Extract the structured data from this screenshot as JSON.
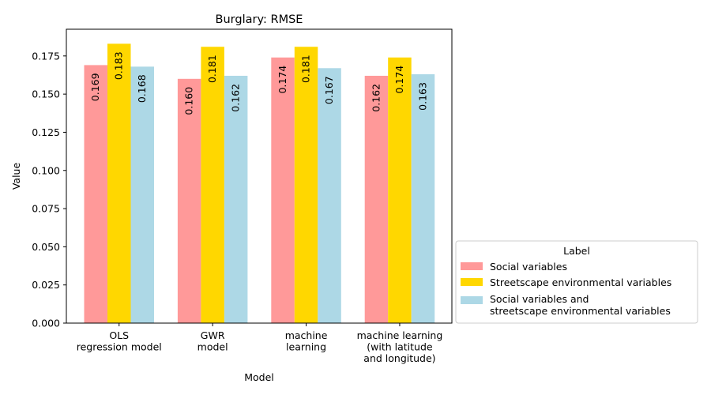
{
  "chart_data": {
    "type": "bar",
    "title": "Burglary: RMSE",
    "xlabel": "Model",
    "ylabel": "Value",
    "ylim": [
      0,
      0.1925
    ],
    "yticks": [
      "0.000",
      "0.025",
      "0.050",
      "0.075",
      "0.100",
      "0.125",
      "0.150",
      "0.175"
    ],
    "ytick_values": [
      0,
      0.025,
      0.05,
      0.075,
      0.1,
      0.125,
      0.15,
      0.175
    ],
    "categories": [
      [
        "OLS",
        "regression model"
      ],
      [
        "GWR",
        "model"
      ],
      [
        "machine",
        "learning"
      ],
      [
        "machine learning",
        "(with latitude",
        "and longitude)"
      ]
    ],
    "series": [
      {
        "name": "Social variables",
        "color": "#ff9999",
        "values": [
          0.169,
          0.16,
          0.174,
          0.162
        ],
        "labels": [
          "0.169",
          "0.160",
          "0.174",
          "0.162"
        ]
      },
      {
        "name": "Streetscape environmental variables",
        "color": "#ffd700",
        "values": [
          0.183,
          0.181,
          0.181,
          0.174
        ],
        "labels": [
          "0.183",
          "0.181",
          "0.181",
          "0.174"
        ]
      },
      {
        "name": [
          "Social variables and",
          "streetscape environmental variables"
        ],
        "color": "#add8e6",
        "values": [
          0.168,
          0.162,
          0.167,
          0.163
        ],
        "labels": [
          "0.168",
          "0.162",
          "0.167",
          "0.163"
        ]
      }
    ],
    "legend": {
      "title": "Label",
      "placement": "lower-right outside"
    },
    "grid": false
  }
}
